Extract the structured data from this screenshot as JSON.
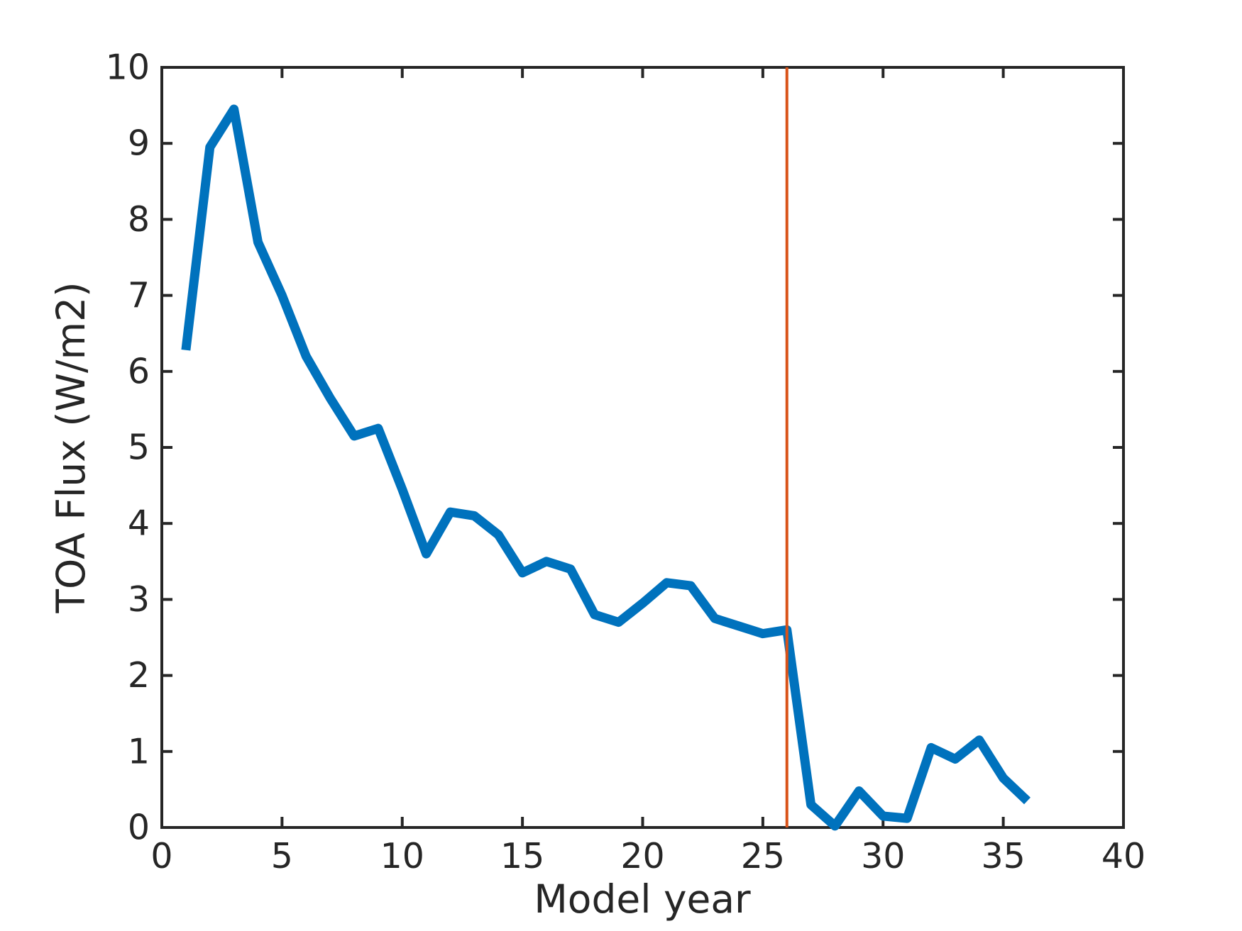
{
  "chart_data": {
    "type": "line",
    "title": "",
    "xlabel": "Model year",
    "ylabel": "TOA Flux (W/m2)",
    "xlim": [
      0,
      40
    ],
    "ylim": [
      0,
      10
    ],
    "xticks": [
      0,
      5,
      10,
      15,
      20,
      25,
      30,
      35,
      40
    ],
    "yticks": [
      0,
      1,
      2,
      3,
      4,
      5,
      6,
      7,
      8,
      9,
      10
    ],
    "grid": false,
    "legend": "none",
    "axis_color": "#262626",
    "series": [
      {
        "name": "toa-flux",
        "color": "#0072BD",
        "x": [
          1,
          2,
          3,
          4,
          5,
          6,
          7,
          8,
          9,
          10,
          11,
          12,
          13,
          14,
          15,
          16,
          17,
          18,
          19,
          20,
          21,
          22,
          23,
          24,
          25,
          26,
          27,
          28,
          29,
          30,
          31,
          32,
          33,
          34,
          35,
          36
        ],
        "y": [
          6.28,
          8.95,
          9.45,
          7.7,
          7.0,
          6.2,
          5.65,
          5.15,
          5.25,
          4.45,
          3.6,
          4.15,
          4.1,
          3.85,
          3.35,
          3.5,
          3.4,
          2.8,
          2.7,
          2.95,
          3.22,
          3.18,
          2.75,
          2.65,
          2.55,
          2.6,
          0.3,
          0.02,
          0.48,
          0.15,
          0.12,
          1.05,
          0.9,
          1.15,
          0.65,
          0.35
        ]
      }
    ],
    "annotations": [
      {
        "type": "vline",
        "x": 26,
        "y_from": 0,
        "y_to": 10,
        "color": "#D95319"
      }
    ]
  }
}
